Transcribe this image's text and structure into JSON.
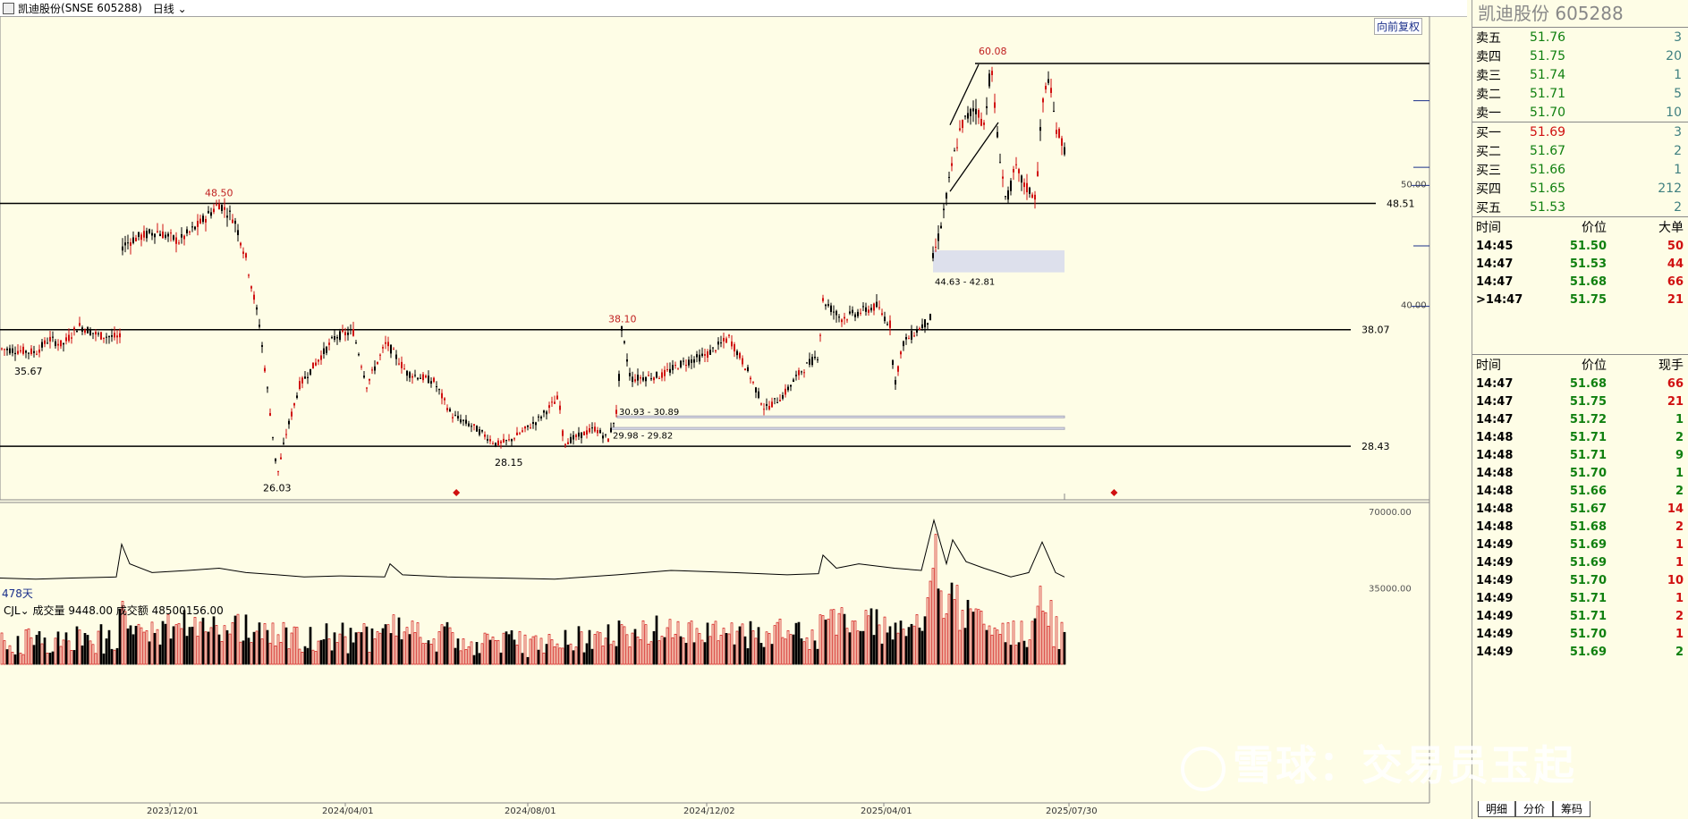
{
  "header": {
    "stock_name": "凯迪股份",
    "exchange_code": "(SNSE 605288)",
    "period": "日线"
  },
  "chart_toolbar": {
    "restore_label": "向前复权",
    "days_label": "478天"
  },
  "chart_data": [
    {
      "type": "candlestick",
      "price_axis_ticks": [
        50.0,
        40.0
      ],
      "price_tick_labels": [
        "50.00",
        "40.00"
      ],
      "ylim": [
        24,
        64
      ],
      "x_tick_labels": [
        "2023/12/01",
        "2024/04/01",
        "2024/08/01",
        "2024/12/02",
        "2025/04/01",
        "2025/07/30"
      ],
      "horizontal_lines": [
        {
          "value": 60.08,
          "label": ""
        },
        {
          "value": 48.51,
          "label": "48.51"
        },
        {
          "value": 38.07,
          "label": "38.07"
        },
        {
          "value": 28.43,
          "label": "28.43"
        }
      ],
      "annotations": [
        {
          "text": "60.08",
          "kind": "high",
          "color": "#c02020"
        },
        {
          "text": "48.50",
          "kind": "high",
          "color": "#c02020"
        },
        {
          "text": "38.10",
          "kind": "high",
          "color": "#c02020"
        },
        {
          "text": "35.67",
          "kind": "low",
          "color": "#000000"
        },
        {
          "text": "26.03",
          "kind": "low",
          "color": "#000000"
        },
        {
          "text": "28.15",
          "kind": "low",
          "color": "#000000"
        }
      ],
      "gap_zones": [
        {
          "label": "44.63 - 42.81",
          "low": 42.81,
          "high": 44.63
        },
        {
          "label": "30.93 - 30.89",
          "low": 30.89,
          "high": 30.93
        },
        {
          "label": "29.98 - 29.82",
          "low": 29.82,
          "high": 29.98
        }
      ],
      "trend_path": [
        [
          0,
          36.5
        ],
        [
          40,
          36.2
        ],
        [
          55,
          37.3
        ],
        [
          70,
          36.8
        ],
        [
          88,
          38.4
        ],
        [
          110,
          37.6
        ],
        [
          135,
          37.4
        ],
        [
          137,
          45.0
        ],
        [
          150,
          45.6
        ],
        [
          175,
          46.2
        ],
        [
          200,
          45.4
        ],
        [
          220,
          46.6
        ],
        [
          245,
          48.5
        ],
        [
          262,
          47.2
        ],
        [
          275,
          44.0
        ],
        [
          290,
          38.5
        ],
        [
          300,
          32.5
        ],
        [
          310,
          26.0
        ],
        [
          320,
          29.5
        ],
        [
          335,
          33.5
        ],
        [
          355,
          35.5
        ],
        [
          375,
          37.5
        ],
        [
          395,
          37.9
        ],
        [
          410,
          33.5
        ],
        [
          432,
          37.0
        ],
        [
          455,
          34.5
        ],
        [
          485,
          33.8
        ],
        [
          505,
          31.0
        ],
        [
          530,
          30.0
        ],
        [
          555,
          28.6
        ],
        [
          570,
          28.9
        ],
        [
          600,
          30.5
        ],
        [
          625,
          32.5
        ],
        [
          630,
          28.7
        ],
        [
          645,
          29.2
        ],
        [
          665,
          29.9
        ],
        [
          680,
          29.0
        ],
        [
          690,
          31.5
        ],
        [
          695,
          38.0
        ],
        [
          705,
          34.0
        ],
        [
          740,
          34.3
        ],
        [
          760,
          35.2
        ],
        [
          790,
          36.0
        ],
        [
          815,
          37.4
        ],
        [
          835,
          34.8
        ],
        [
          855,
          31.5
        ],
        [
          875,
          32.6
        ],
        [
          895,
          34.6
        ],
        [
          915,
          36.0
        ],
        [
          920,
          40.5
        ],
        [
          940,
          39.0
        ],
        [
          960,
          39.5
        ],
        [
          980,
          40.0
        ],
        [
          995,
          38.5
        ],
        [
          1000,
          33.5
        ],
        [
          1010,
          37.0
        ],
        [
          1025,
          38.0
        ],
        [
          1040,
          39.0
        ],
        [
          1043,
          44.0
        ],
        [
          1050,
          46.0
        ],
        [
          1058,
          49.0
        ],
        [
          1065,
          52.0
        ],
        [
          1075,
          55.0
        ],
        [
          1090,
          56.5
        ],
        [
          1100,
          55.0
        ],
        [
          1108,
          60.0
        ],
        [
          1115,
          54.0
        ],
        [
          1125,
          48.5
        ],
        [
          1135,
          51.5
        ],
        [
          1145,
          50.0
        ],
        [
          1158,
          49.0
        ],
        [
          1165,
          56.5
        ],
        [
          1172,
          59.0
        ],
        [
          1180,
          55.0
        ],
        [
          1190,
          53.0
        ]
      ],
      "markers": [
        {
          "x_frac": 0.3865,
          "kind": "diamond"
        },
        {
          "x_frac": 0.9435,
          "kind": "diamond"
        }
      ]
    },
    {
      "type": "bar",
      "name": "CJL",
      "ylim": [
        0,
        70000
      ],
      "ytick_labels": [
        "70000.00",
        "35000.00"
      ],
      "legend_label": "CJL",
      "volume_label": "成交量",
      "volume_value": "9448.00",
      "amount_label": "成交额",
      "amount_value": "48500156.00",
      "line_series": [
        [
          0,
          39500
        ],
        [
          40,
          39000
        ],
        [
          80,
          39500
        ],
        [
          130,
          40000
        ],
        [
          136,
          55000
        ],
        [
          145,
          46000
        ],
        [
          170,
          42000
        ],
        [
          210,
          43000
        ],
        [
          245,
          44000
        ],
        [
          275,
          42000
        ],
        [
          310,
          41000
        ],
        [
          340,
          40000
        ],
        [
          380,
          40500
        ],
        [
          430,
          40000
        ],
        [
          436,
          46000
        ],
        [
          450,
          41000
        ],
        [
          500,
          40000
        ],
        [
          560,
          39500
        ],
        [
          620,
          39000
        ],
        [
          690,
          41000
        ],
        [
          750,
          43000
        ],
        [
          820,
          42000
        ],
        [
          880,
          41000
        ],
        [
          915,
          41500
        ],
        [
          920,
          50000
        ],
        [
          935,
          44000
        ],
        [
          960,
          46000
        ],
        [
          1000,
          44000
        ],
        [
          1030,
          43000
        ],
        [
          1044,
          66000
        ],
        [
          1058,
          46000
        ],
        [
          1065,
          57000
        ],
        [
          1080,
          47000
        ],
        [
          1100,
          44000
        ],
        [
          1130,
          40000
        ],
        [
          1150,
          42000
        ],
        [
          1165,
          56000
        ],
        [
          1180,
          42000
        ],
        [
          1190,
          40000
        ]
      ]
    }
  ],
  "right_panel": {
    "title": "凯迪股份  605288",
    "asks": [
      {
        "label": "卖五",
        "price": "51.76",
        "volume": "3"
      },
      {
        "label": "卖四",
        "price": "51.75",
        "volume": "20"
      },
      {
        "label": "卖三",
        "price": "51.74",
        "volume": "1"
      },
      {
        "label": "卖二",
        "price": "51.71",
        "volume": "5"
      },
      {
        "label": "卖一",
        "price": "51.70",
        "volume": "10"
      }
    ],
    "bids": [
      {
        "label": "买一",
        "price": "51.69",
        "volume": "3"
      },
      {
        "label": "买二",
        "price": "51.67",
        "volume": "2"
      },
      {
        "label": "买三",
        "price": "51.66",
        "volume": "1"
      },
      {
        "label": "买四",
        "price": "51.65",
        "volume": "212"
      },
      {
        "label": "买五",
        "price": "51.53",
        "volume": "2"
      }
    ],
    "big_orders_header": [
      "时间",
      "价位",
      "大单"
    ],
    "big_orders": [
      {
        "time": "14:45",
        "price": "51.50",
        "qty": "50"
      },
      {
        "time": "14:47",
        "price": "51.53",
        "qty": "44"
      },
      {
        "time": "14:47",
        "price": "51.68",
        "qty": "66"
      },
      {
        "time": ">14:47",
        "price": "51.75",
        "qty": "21"
      }
    ],
    "ticks_header": [
      "时间",
      "价位",
      "现手"
    ],
    "ticks": [
      {
        "time": "14:47",
        "price": "51.68",
        "qty": "66",
        "dir": "red"
      },
      {
        "time": "14:47",
        "price": "51.75",
        "qty": "21",
        "dir": "red"
      },
      {
        "time": "14:47",
        "price": "51.72",
        "qty": "1",
        "dir": "green"
      },
      {
        "time": "14:48",
        "price": "51.71",
        "qty": "2",
        "dir": "green"
      },
      {
        "time": "14:48",
        "price": "51.71",
        "qty": "9",
        "dir": "green"
      },
      {
        "time": "14:48",
        "price": "51.70",
        "qty": "1",
        "dir": "green"
      },
      {
        "time": "14:48",
        "price": "51.66",
        "qty": "2",
        "dir": "green"
      },
      {
        "time": "14:48",
        "price": "51.67",
        "qty": "14",
        "dir": "red"
      },
      {
        "time": "14:48",
        "price": "51.68",
        "qty": "2",
        "dir": "red"
      },
      {
        "time": "14:49",
        "price": "51.69",
        "qty": "1",
        "dir": "red"
      },
      {
        "time": "14:49",
        "price": "51.69",
        "qty": "1",
        "dir": "red"
      },
      {
        "time": "14:49",
        "price": "51.70",
        "qty": "10",
        "dir": "red"
      },
      {
        "time": "14:49",
        "price": "51.71",
        "qty": "1",
        "dir": "red"
      },
      {
        "time": "14:49",
        "price": "51.71",
        "qty": "2",
        "dir": "red"
      },
      {
        "time": "14:49",
        "price": "51.70",
        "qty": "1",
        "dir": "red"
      },
      {
        "time": "14:49",
        "price": "51.69",
        "qty": "2",
        "dir": "green"
      }
    ],
    "tabs": [
      "明细",
      "分价",
      "筹码"
    ]
  },
  "watermark": "雪球：交易员玉起",
  "colors": {
    "up": "#d01010",
    "down": "#000000",
    "green": "#108010",
    "accent": "#1a2f8a"
  }
}
